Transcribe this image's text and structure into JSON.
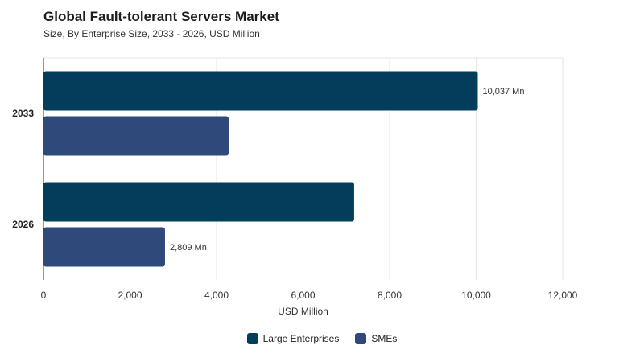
{
  "chart_data": {
    "type": "bar",
    "orientation": "horizontal",
    "title": "Global Fault-tolerant Servers Market",
    "subtitle": "Size, By Enterprise Size, 2033 - 2026, USD Million",
    "xlabel": "USD Million",
    "ylabel": "",
    "xlim": [
      0,
      12000
    ],
    "x_ticks": [
      0,
      2000,
      4000,
      6000,
      8000,
      10000,
      12000
    ],
    "x_tick_labels": [
      "0",
      "2,000",
      "4,000",
      "6,000",
      "8,000",
      "10,000",
      "12,000"
    ],
    "categories": [
      "2033",
      "2026"
    ],
    "series": [
      {
        "name": "Large Enterprises",
        "color": "#023e5b",
        "values": [
          10037,
          7180
        ],
        "data_labels": [
          "10,037 Mn",
          ""
        ]
      },
      {
        "name": "SMEs",
        "color": "#2f4a7a",
        "values": [
          4280,
          2809
        ],
        "data_labels": [
          "",
          "2,809 Mn"
        ]
      }
    ],
    "grid": "vertical",
    "legend_position": "bottom"
  }
}
